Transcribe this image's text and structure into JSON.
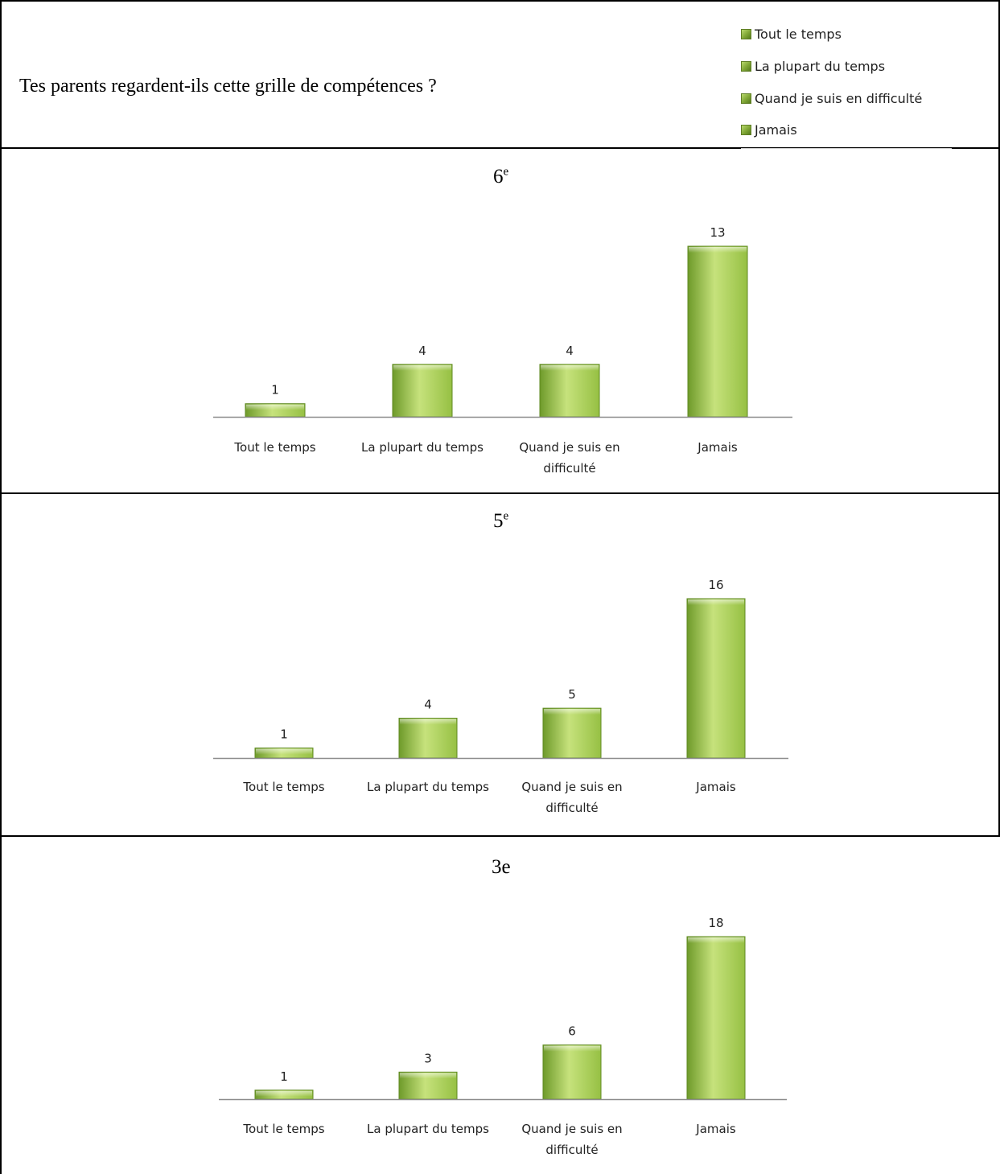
{
  "question": "Tes parents regardent-ils cette grille de compétences ?",
  "legend": [
    "Tout le temps",
    "La plupart du temps",
    "Quand je suis en difficulté",
    "Jamais"
  ],
  "colors": {
    "bar_top": "#c6e27c",
    "bar_mid": "#96c043",
    "bar_bottom": "#6e9a2a",
    "bar_edge": "#5f8a22",
    "axis": "#8c8c8c"
  },
  "chart_data": [
    {
      "type": "bar",
      "title_main": "6",
      "title_sup": "e",
      "categories": [
        "Tout le temps",
        "La plupart du temps",
        "Quand je suis en difficulté",
        "Jamais"
      ],
      "values": [
        1,
        4,
        4,
        13
      ],
      "ylim": [
        0,
        13
      ]
    },
    {
      "type": "bar",
      "title_main": "5",
      "title_sup": "e",
      "categories": [
        "Tout le temps",
        "La plupart du temps",
        "Quand je suis en difficulté",
        "Jamais"
      ],
      "values": [
        1,
        4,
        5,
        16
      ],
      "ylim": [
        0,
        16
      ]
    },
    {
      "type": "bar",
      "title_main": "3e",
      "title_sup": "",
      "categories": [
        "Tout le temps",
        "La plupart du temps",
        "Quand je suis en difficulté",
        "Jamais"
      ],
      "values": [
        1,
        3,
        6,
        18
      ],
      "ylim": [
        0,
        18
      ]
    }
  ]
}
